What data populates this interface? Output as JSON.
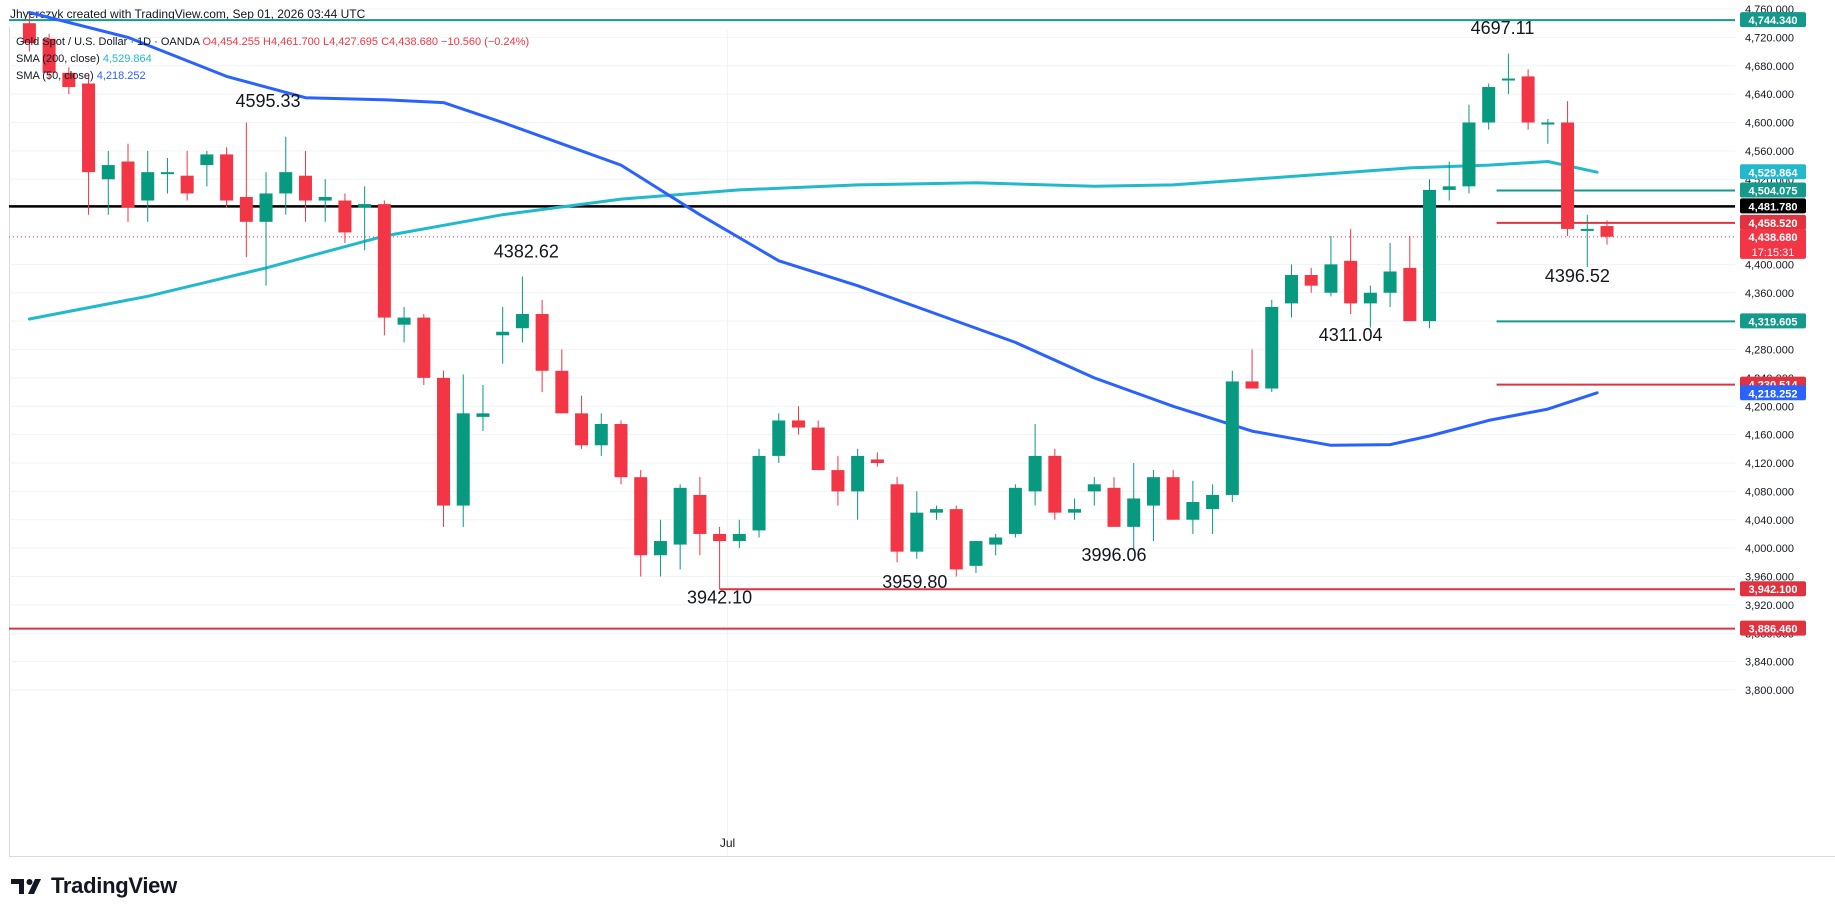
{
  "header": {
    "credit": "Jhyerczyk created with TradingView.com, Sep 01, 2026 03:44 UTC"
  },
  "legend": {
    "symbol": "Gold Spot / U.S. Dollar · 1D · OANDA",
    "open": "O4,454.255",
    "high": "H4,461.700",
    "low": "L4,427.695",
    "close": "C4,438.680",
    "change": "−10.560 (−0.24%)",
    "sma200_label": "SMA (200, close)",
    "sma200_value": "4,529.864",
    "sma50_label": "SMA (50, close)",
    "sma50_value": "4,218.252"
  },
  "brand": {
    "name": "TradingView"
  },
  "colors": {
    "up": "#089981",
    "down": "#f23645",
    "sma200": "#22b9cc",
    "sma50": "#2962ff",
    "teal_level": "#14998a",
    "red_level": "#e0323f",
    "black_level": "#000000",
    "grid": "#f0f3fa",
    "axis_text": "#131722"
  },
  "chart_data": {
    "type": "candlestick",
    "symbol": "XAUUSD",
    "timeframe": "1D",
    "y_axis": {
      "ylim": [
        3760,
        4770
      ],
      "ticks": [
        3800,
        3840,
        3880,
        3920,
        3960,
        4000,
        4040,
        4080,
        4120,
        4160,
        4200,
        4240,
        4280,
        4320,
        4360,
        4400,
        4440,
        4480,
        4520,
        4560,
        4600,
        4640,
        4680,
        4720,
        4760
      ],
      "tick_labels": [
        "3,800.000",
        "3,840.000",
        "3,880.000",
        "3,920.000",
        "3,960.000",
        "4,000.000",
        "4,040.000",
        "4,080.000",
        "4,120.000",
        "4,160.000",
        "4,200.000",
        "4,240.000",
        "4,280.000",
        "4,320.000",
        "4,360.000",
        "4,400.000",
        "4,440.000",
        "4,480.000",
        "4,520.000",
        "4,560.000",
        "4,600.000",
        "4,640.000",
        "4,680.000",
        "4,720.000",
        "4,760.000"
      ]
    },
    "x_axis": {
      "labels": [
        {
          "text": "Jul",
          "bar_index": 35.4
        }
      ]
    },
    "candles": [
      [
        4740,
        4750,
        4700,
        4712
      ],
      [
        4718,
        4725,
        4660,
        4670
      ],
      [
        4670,
        4678,
        4640,
        4650
      ],
      [
        4655,
        4665,
        4470,
        4530
      ],
      [
        4520,
        4560,
        4470,
        4540
      ],
      [
        4545,
        4570,
        4460,
        4480
      ],
      [
        4490,
        4560,
        4460,
        4530
      ],
      [
        4530,
        4550,
        4500,
        4530
      ],
      [
        4525,
        4560,
        4490,
        4500
      ],
      [
        4540,
        4560,
        4510,
        4555
      ],
      [
        4555,
        4565,
        4480,
        4490
      ],
      [
        4495,
        4600,
        4410,
        4460
      ],
      [
        4460,
        4530,
        4370,
        4500
      ],
      [
        4500,
        4580,
        4470,
        4530
      ],
      [
        4525,
        4560,
        4460,
        4490
      ],
      [
        4490,
        4520,
        4460,
        4495
      ],
      [
        4490,
        4500,
        4430,
        4445
      ],
      [
        4480,
        4510,
        4420,
        4485
      ],
      [
        4485,
        4490,
        4300,
        4325
      ],
      [
        4315,
        4340,
        4290,
        4325
      ],
      [
        4325,
        4330,
        4230,
        4240
      ],
      [
        4240,
        4250,
        4030,
        4060
      ],
      [
        4060,
        4245,
        4030,
        4190
      ],
      [
        4185,
        4230,
        4165,
        4190
      ],
      [
        4300,
        4340,
        4260,
        4305
      ],
      [
        4310,
        4383,
        4290,
        4330
      ],
      [
        4330,
        4350,
        4220,
        4250
      ],
      [
        4250,
        4280,
        4190,
        4190
      ],
      [
        4190,
        4215,
        4140,
        4145
      ],
      [
        4145,
        4190,
        4130,
        4175
      ],
      [
        4175,
        4180,
        4090,
        4100
      ],
      [
        4100,
        4110,
        3960,
        3990
      ],
      [
        3990,
        4040,
        3960,
        4010
      ],
      [
        4005,
        4090,
        3970,
        4085
      ],
      [
        4075,
        4100,
        3990,
        4020
      ],
      [
        4020,
        4030,
        3942,
        4010
      ],
      [
        4010,
        4040,
        4000,
        4020
      ],
      [
        4025,
        4140,
        4015,
        4130
      ],
      [
        4130,
        4190,
        4120,
        4180
      ],
      [
        4180,
        4200,
        4160,
        4170
      ],
      [
        4170,
        4180,
        4110,
        4110
      ],
      [
        4110,
        4130,
        4060,
        4080
      ],
      [
        4080,
        4140,
        4040,
        4130
      ],
      [
        4125,
        4135,
        4115,
        4120
      ],
      [
        4090,
        4100,
        3980,
        3995
      ],
      [
        3995,
        4080,
        3985,
        4050
      ],
      [
        4050,
        4060,
        4040,
        4055
      ],
      [
        4055,
        4060,
        3960,
        3970
      ],
      [
        3975,
        4010,
        3965,
        4010
      ],
      [
        4005,
        4020,
        3990,
        4015
      ],
      [
        4020,
        4090,
        4015,
        4085
      ],
      [
        4080,
        4175,
        4060,
        4130
      ],
      [
        4130,
        4140,
        4040,
        4050
      ],
      [
        4050,
        4070,
        4040,
        4055
      ],
      [
        4080,
        4100,
        4060,
        4090
      ],
      [
        4085,
        4100,
        4030,
        4030
      ],
      [
        4030,
        4120,
        3996,
        4070
      ],
      [
        4060,
        4110,
        4010,
        4100
      ],
      [
        4100,
        4110,
        4040,
        4040
      ],
      [
        4040,
        4095,
        4020,
        4065
      ],
      [
        4055,
        4090,
        4020,
        4075
      ],
      [
        4075,
        4250,
        4065,
        4235
      ],
      [
        4235,
        4280,
        4225,
        4225
      ],
      [
        4225,
        4350,
        4220,
        4340
      ],
      [
        4345,
        4400,
        4325,
        4385
      ],
      [
        4385,
        4395,
        4360,
        4370
      ],
      [
        4360,
        4440,
        4355,
        4400
      ],
      [
        4405,
        4450,
        4330,
        4345
      ],
      [
        4345,
        4370,
        4311,
        4360
      ],
      [
        4360,
        4430,
        4340,
        4390
      ],
      [
        4395,
        4440,
        4320,
        4320
      ],
      [
        4320,
        4520,
        4310,
        4505
      ],
      [
        4505,
        4545,
        4490,
        4510
      ],
      [
        4510,
        4625,
        4500,
        4600
      ],
      [
        4600,
        4655,
        4590,
        4650
      ],
      [
        4660,
        4697,
        4640,
        4662
      ],
      [
        4665,
        4675,
        4590,
        4600
      ],
      [
        4600,
        4605,
        4570,
        4600
      ],
      [
        4600,
        4630,
        4440,
        4450
      ],
      [
        4450,
        4470,
        4396,
        4450
      ],
      [
        4454,
        4462,
        4428,
        4439
      ]
    ],
    "sma50": [
      [
        0,
        4755
      ],
      [
        5,
        4720
      ],
      [
        10,
        4665
      ],
      [
        14,
        4635
      ],
      [
        18,
        4632
      ],
      [
        21,
        4628
      ],
      [
        24,
        4600
      ],
      [
        27,
        4570
      ],
      [
        30,
        4540
      ],
      [
        34,
        4470
      ],
      [
        38,
        4405
      ],
      [
        42,
        4370
      ],
      [
        46,
        4330
      ],
      [
        50,
        4290
      ],
      [
        54,
        4240
      ],
      [
        58,
        4200
      ],
      [
        62,
        4165
      ],
      [
        66,
        4145
      ],
      [
        69,
        4146
      ],
      [
        71,
        4158
      ],
      [
        74,
        4180
      ],
      [
        77,
        4196
      ],
      [
        79.5,
        4219
      ]
    ],
    "sma200": [
      [
        0,
        4323
      ],
      [
        6,
        4355
      ],
      [
        12,
        4395
      ],
      [
        18,
        4440
      ],
      [
        24,
        4470
      ],
      [
        30,
        4492
      ],
      [
        36,
        4505
      ],
      [
        42,
        4512
      ],
      [
        48,
        4515
      ],
      [
        54,
        4510
      ],
      [
        58,
        4512
      ],
      [
        62,
        4520
      ],
      [
        66,
        4528
      ],
      [
        70,
        4536
      ],
      [
        74,
        4540
      ],
      [
        77,
        4545
      ],
      [
        79.5,
        4530
      ]
    ],
    "peak_labels": [
      {
        "text": "4595.33",
        "bar_index": 12.1,
        "price": 4622
      },
      {
        "text": "4382.62",
        "bar_index": 25.2,
        "price": 4410
      },
      {
        "text": "3942.10",
        "bar_index": 35.0,
        "price": 3922
      },
      {
        "text": "3959.80",
        "bar_index": 44.9,
        "price": 3944
      },
      {
        "text": "3996.06",
        "bar_index": 55.0,
        "price": 3982
      },
      {
        "text": "4311.04",
        "bar_index": 67.0,
        "price": 4292
      },
      {
        "text": "4697.11",
        "bar_index": 74.7,
        "price": 4725
      },
      {
        "text": "4396.52",
        "bar_index": 78.5,
        "price": 4375
      }
    ],
    "levels": [
      {
        "price": 4744.34,
        "label": "4,744.340",
        "color": "#14998a",
        "from_bar": -1,
        "width": 2
      },
      {
        "price": 4504.075,
        "label": "4,504.075",
        "color": "#14998a",
        "from_bar": 74.4,
        "width": 2
      },
      {
        "price": 4481.78,
        "label": "4,481.780",
        "color": "#000000",
        "from_bar": -1,
        "width": 2.5
      },
      {
        "price": 4458.52,
        "label": "4,458.520",
        "color": "#e0323f",
        "from_bar": 74.4,
        "width": 2
      },
      {
        "price": 4319.605,
        "label": "4,319.605",
        "color": "#14998a",
        "from_bar": 74.4,
        "width": 2
      },
      {
        "price": 4230.514,
        "label": "4,230.514",
        "color": "#e0323f",
        "from_bar": 74.4,
        "width": 2
      },
      {
        "price": 3942.1,
        "label": "3,942.100",
        "color": "#e0323f",
        "from_bar": 35,
        "width": 2
      },
      {
        "price": 3886.46,
        "label": "3,886.460",
        "color": "#e0323f",
        "from_bar": -1,
        "width": 2
      }
    ],
    "price_badges": [
      {
        "price": 4529.864,
        "label": "4,529.864",
        "color": "#22b9cc"
      },
      {
        "price": 4218.252,
        "label": "4,218.252",
        "color": "#2962ff"
      }
    ],
    "last_price": {
      "price": 4438.68,
      "label": "4,438.680",
      "countdown": "17:15:31",
      "color": "#f23645"
    }
  }
}
